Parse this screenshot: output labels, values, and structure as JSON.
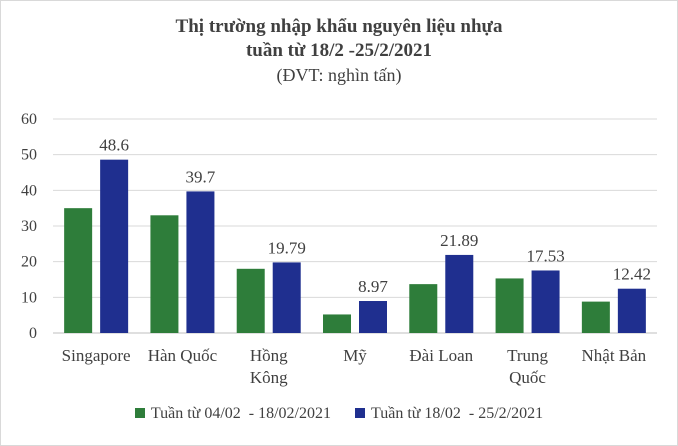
{
  "chart_data": {
    "type": "bar",
    "title_lines": [
      "Thị trường nhập khẩu nguyên liệu nhựa",
      "tuần từ 18/2 -25/2/2021"
    ],
    "subtitle": "(ĐVT: nghìn tấn)",
    "xlabel": "",
    "ylabel": "",
    "ylim": [
      0,
      60
    ],
    "yticks": [
      0,
      10,
      20,
      30,
      40,
      50,
      60
    ],
    "grid": true,
    "legend_position": "bottom",
    "categories": [
      [
        "Singapore"
      ],
      [
        "Hàn Quốc"
      ],
      [
        "Hồng",
        "Kông"
      ],
      [
        "Mỹ"
      ],
      [
        "Đài Loan"
      ],
      [
        "Trung",
        "Quốc"
      ],
      [
        "Nhật Bản"
      ]
    ],
    "series": [
      {
        "name": "Tuần từ 04/02  - 18/02/2021",
        "color": "#2e7d3a",
        "values": [
          35,
          33,
          18,
          5.2,
          13.7,
          15.3,
          8.8
        ],
        "data_labels": [
          "",
          "",
          "",
          "",
          "",
          "",
          ""
        ]
      },
      {
        "name": "Tuần từ 18/02  - 25/2/2021",
        "color": "#1f2f8f",
        "values": [
          48.6,
          39.7,
          19.79,
          8.97,
          21.89,
          17.53,
          12.42
        ],
        "data_labels": [
          "48.6",
          "39.7",
          "19.79",
          "8.97",
          "21.89",
          "17.53",
          "12.42"
        ]
      }
    ],
    "colors": {
      "grid": "#d9d9d9",
      "axis": "#bfbfbf",
      "text": "#404040"
    }
  }
}
